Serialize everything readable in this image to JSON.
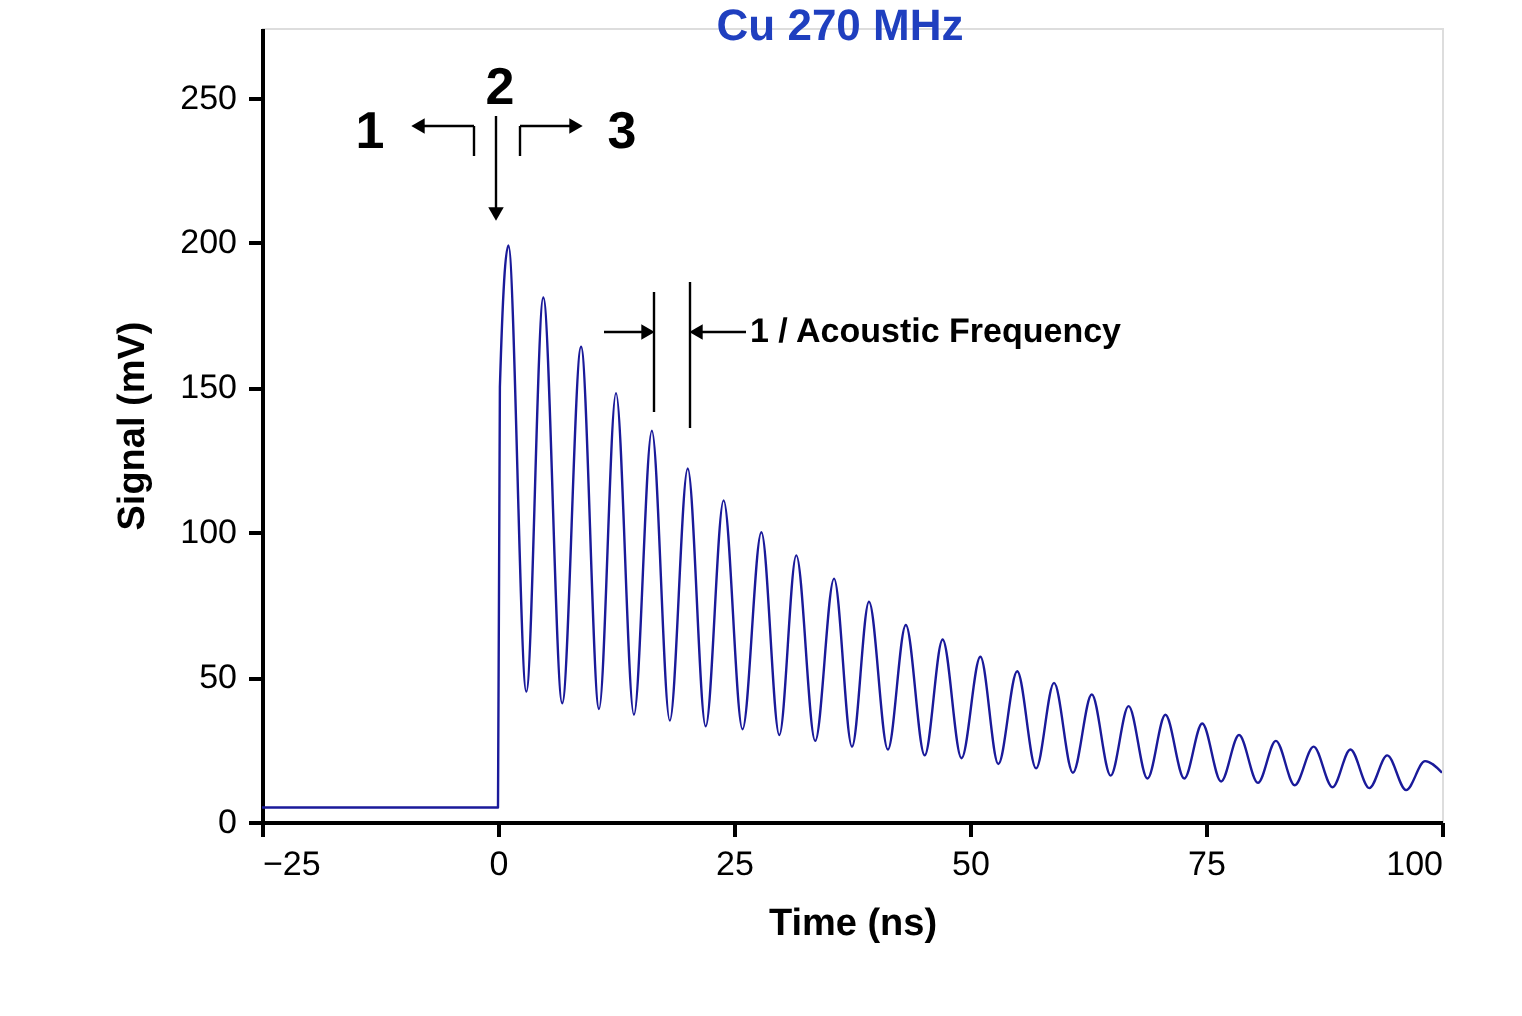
{
  "chart_data": {
    "type": "line",
    "title": "Cu 270 MHz",
    "xlabel": "Time (ns)",
    "ylabel": "Signal (mV)",
    "x": [
      -25,
      0,
      0.2,
      1.1,
      3.0,
      4.8,
      6.8,
      8.8,
      10.7,
      12.5,
      14.4,
      16.3,
      18.2,
      20.1,
      22.0,
      23.9,
      25.9,
      27.9,
      29.8,
      31.6,
      33.6,
      35.6,
      37.5,
      39.3,
      41.3,
      43.2,
      45.2,
      47.1,
      49.1,
      51.1,
      53.0,
      55.0,
      57.0,
      58.9,
      60.9,
      62.9,
      64.9,
      66.8,
      68.8,
      70.7,
      72.7,
      74.6,
      76.6,
      78.5,
      80.5,
      82.4,
      84.4,
      86.4,
      88.4,
      90.3,
      92.3,
      94.2,
      96.2,
      98.2,
      100
    ],
    "values": [
      5,
      5,
      150,
      199,
      45,
      181,
      41,
      164,
      39,
      148,
      37,
      135,
      35,
      122,
      33,
      111,
      32,
      100,
      30,
      92,
      28,
      84,
      26,
      76,
      25,
      68,
      23,
      63,
      22,
      57,
      20,
      52,
      18.5,
      48,
      17,
      44,
      16,
      40,
      15,
      37,
      15,
      34,
      14,
      30,
      13.5,
      28,
      12.7,
      26,
      12,
      25,
      11.7,
      23,
      11,
      21,
      17
    ],
    "color": "#1a1a9a",
    "xlim": [
      -25,
      100
    ],
    "ylim": [
      0,
      274
    ],
    "xticks": [
      -25,
      0,
      25,
      50,
      75,
      100
    ],
    "yticks": [
      0,
      50,
      100,
      150,
      200,
      250
    ],
    "grid": false,
    "marker": "none",
    "line_style": "solid",
    "annotations": [
      "1",
      "2",
      "3",
      "1 / Acoustic Frequency"
    ]
  }
}
